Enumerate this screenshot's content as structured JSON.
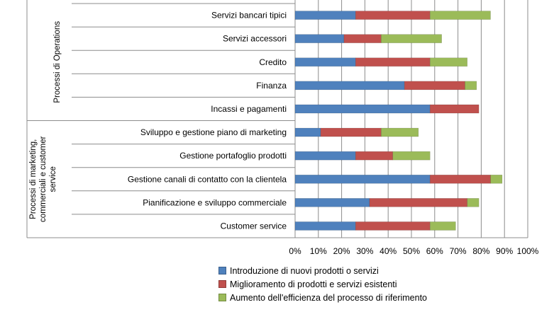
{
  "chart_data": {
    "type": "bar",
    "orientation": "horizontal",
    "stacked": true,
    "groups": [
      {
        "label": "Processi di Operations",
        "categories": [
          "Servizi bancari tipici",
          "Servizi accessori",
          "Credito",
          "Finanza",
          "Incassi e pagamenti"
        ]
      },
      {
        "label": "Processi di marketing, commerciali e customer service",
        "label_lines": [
          "Processi di marketing,",
          "commerciali e customer",
          "service"
        ],
        "categories": [
          "Sviluppo e gestione piano di marketing",
          "Gestione portafoglio prodotti",
          "Gestione canali di contatto con la clientela",
          "Pianificazione e sviluppo commerciale",
          "Customer service"
        ]
      }
    ],
    "categories": [
      "Servizi bancari tipici",
      "Servizi accessori",
      "Credito",
      "Finanza",
      "Incassi e pagamenti",
      "Sviluppo e gestione piano di marketing",
      "Gestione portafoglio prodotti",
      "Gestione canali di contatto con la clientela",
      "Pianificazione e sviluppo commerciale",
      "Customer service"
    ],
    "series": [
      {
        "name": "Introduzione di nuovi prodotti o servizi",
        "color": "#4f81bd",
        "values": [
          26,
          21,
          26,
          47,
          58,
          11,
          26,
          58,
          32,
          26
        ]
      },
      {
        "name": "Miglioramento di prodotti e servizi esistenti",
        "color": "#c0504d",
        "values": [
          32,
          16,
          32,
          26,
          21,
          26,
          16,
          26,
          42,
          32
        ]
      },
      {
        "name": "Aumento dell'efficienza del processo di riferimento",
        "color": "#9bbb59",
        "values": [
          26,
          26,
          16,
          5,
          0,
          16,
          16,
          5,
          5,
          11
        ]
      }
    ],
    "x_ticks": [
      "0%",
      "10%",
      "20%",
      "30%",
      "40%",
      "50%",
      "60%",
      "70%",
      "80%",
      "90%",
      "100%"
    ],
    "xlim": [
      0,
      100
    ],
    "grid": true,
    "legend_position": "bottom"
  }
}
